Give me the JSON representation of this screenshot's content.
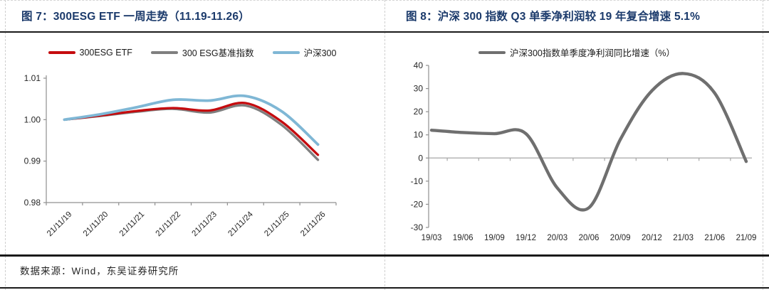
{
  "figure7": {
    "title": "图 7：300ESG ETF 一周走势（11.19-11.26）"
  },
  "figure8": {
    "title": "图 8：沪深 300 指数 Q3 单季净利润较 19 年复合增速 5.1%"
  },
  "footer": {
    "source": "数据来源：Wind，东吴证券研究所"
  },
  "colors": {
    "title_navy": "#1b3a6b",
    "rule_black": "#1a1a1a",
    "axis_gray": "#909090",
    "zero_line_gray": "#a6a6a6",
    "etf_red": "#c50b0e",
    "benchmark_gray": "#7f7f7f",
    "csi300_blue": "#7fb7d5",
    "profit_line_gray": "#6f6f6f"
  },
  "chart_data": [
    {
      "type": "line",
      "title": "300ESG ETF 一周走势（11.19-11.26）",
      "categories": [
        "21/11/19",
        "21/11/20",
        "21/11/21",
        "21/11/22",
        "21/11/23",
        "21/11/24",
        "21/11/25",
        "21/11/26"
      ],
      "series": [
        {
          "name": "300ESG ETF",
          "color": "#c50b0e",
          "values": [
            1.0,
            1.001,
            1.0021,
            1.0028,
            1.0022,
            1.004,
            0.9995,
            0.9915
          ]
        },
        {
          "name": "300 ESG基准指数",
          "color": "#7f7f7f",
          "values": [
            1.0,
            1.0009,
            1.0019,
            1.0026,
            1.0017,
            1.0034,
            0.9987,
            0.9903
          ]
        },
        {
          "name": "沪深300",
          "color": "#7fb7d5",
          "values": [
            1.0,
            1.0013,
            1.003,
            1.0048,
            1.0046,
            1.0057,
            1.002,
            0.994
          ]
        }
      ],
      "ylim": [
        0.98,
        1.01
      ],
      "ytick_values": [
        1.01,
        1.0,
        0.99,
        0.98
      ],
      "ytick_labels": [
        "1.01",
        "1.00",
        "0.99",
        "0.98"
      ],
      "xlabel": "",
      "ylabel": "",
      "grid": false,
      "legend_position": "top",
      "smooth": true
    },
    {
      "type": "line",
      "title": "沪深 300 指数 Q3 单季净利润较 19 年复合增速 5.1%",
      "categories": [
        "19/03",
        "19/06",
        "19/09",
        "19/12",
        "20/03",
        "20/06",
        "20/09",
        "20/12",
        "21/03",
        "21/06",
        "21/09"
      ],
      "series": [
        {
          "name": "沪深300指数单季度净利润同比增速（%）",
          "color": "#6f6f6f",
          "values": [
            12,
            11,
            10.5,
            10.5,
            -13,
            -21.5,
            8,
            29,
            36.5,
            28,
            -1.5
          ]
        }
      ],
      "ylim": [
        -30,
        40
      ],
      "ytick_values": [
        40,
        30,
        20,
        10,
        0,
        -10,
        -20,
        -30
      ],
      "ytick_labels": [
        "40",
        "30",
        "20",
        "10",
        "0",
        "-10",
        "-20",
        "-30"
      ],
      "xlabel": "",
      "ylabel": "",
      "grid": false,
      "zero_axis": true,
      "legend_position": "top",
      "smooth": true
    }
  ]
}
